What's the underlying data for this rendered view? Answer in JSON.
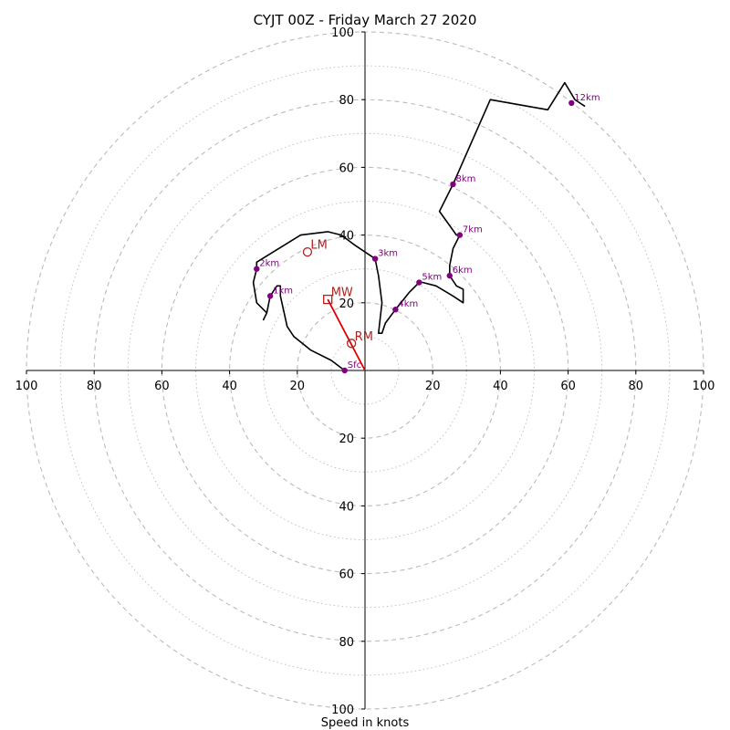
{
  "chart_data": {
    "type": "hodograph",
    "title": "CYJT 00Z - Friday March 27 2020",
    "xlabel": "Speed in knots",
    "range": [
      -100,
      100
    ],
    "ring_interval": 20,
    "minor_ring_interval": 10,
    "x_ticks": [
      "100",
      "80",
      "60",
      "40",
      "20",
      "20",
      "40",
      "60",
      "80",
      "100"
    ],
    "y_ticks": [
      "100",
      "80",
      "60",
      "40",
      "20",
      "20",
      "40",
      "60",
      "80",
      "100"
    ],
    "hodograph_line": [
      [
        -6,
        0
      ],
      [
        -10,
        3
      ],
      [
        -16,
        6
      ],
      [
        -21,
        10
      ],
      [
        -23,
        13
      ],
      [
        -25,
        22
      ],
      [
        -25,
        25
      ],
      [
        -26,
        25
      ],
      [
        -28,
        22
      ],
      [
        -29,
        17
      ],
      [
        -30,
        15
      ],
      [
        -29,
        17
      ],
      [
        -32,
        20
      ],
      [
        -33,
        26
      ],
      [
        -32,
        30
      ],
      [
        -32,
        32
      ],
      [
        -19,
        40
      ],
      [
        -11,
        41
      ],
      [
        -7,
        40
      ],
      [
        -3,
        37
      ],
      [
        3,
        33
      ],
      [
        4,
        28
      ],
      [
        5,
        20
      ],
      [
        4,
        11
      ],
      [
        5,
        11
      ],
      [
        6,
        14
      ],
      [
        9,
        18
      ],
      [
        13,
        23
      ],
      [
        16,
        26
      ],
      [
        17,
        26
      ],
      [
        21,
        25
      ],
      [
        26,
        22
      ],
      [
        29,
        20
      ],
      [
        29,
        24
      ],
      [
        27,
        25
      ],
      [
        25,
        28
      ],
      [
        25,
        31
      ],
      [
        26,
        36
      ],
      [
        28,
        40
      ],
      [
        27,
        40
      ],
      [
        22,
        47
      ],
      [
        26,
        55
      ],
      [
        37,
        80
      ],
      [
        54,
        77
      ],
      [
        59,
        85
      ],
      [
        62,
        80
      ],
      [
        65,
        78
      ]
    ],
    "height_markers": [
      {
        "label": "Sfc",
        "x": -6,
        "y": 0
      },
      {
        "label": "1km",
        "x": -28,
        "y": 22
      },
      {
        "label": "2km",
        "x": -32,
        "y": 30
      },
      {
        "label": "3km",
        "x": 3,
        "y": 33
      },
      {
        "label": "4km",
        "x": 9,
        "y": 18
      },
      {
        "label": "5km",
        "x": 16,
        "y": 26
      },
      {
        "label": "6km",
        "x": 25,
        "y": 28
      },
      {
        "label": "7km",
        "x": 28,
        "y": 40
      },
      {
        "label": "8km",
        "x": 26,
        "y": 55
      },
      {
        "label": "12km",
        "x": 61,
        "y": 79
      }
    ],
    "storm_motion": {
      "LM": {
        "label": "LM",
        "x": -17,
        "y": 35
      },
      "MW": {
        "label": "MW",
        "x": -11,
        "y": 21
      },
      "RM": {
        "label": "RM",
        "x": -4,
        "y": 8
      },
      "shear_vector": {
        "from": [
          0,
          0
        ],
        "to": [
          -11,
          21
        ]
      }
    },
    "colors": {
      "line": "#000000",
      "markers": "#800080",
      "storm": "#b22222",
      "shear": "#e00000",
      "rings": "#bbbbbb"
    },
    "grid": true
  }
}
